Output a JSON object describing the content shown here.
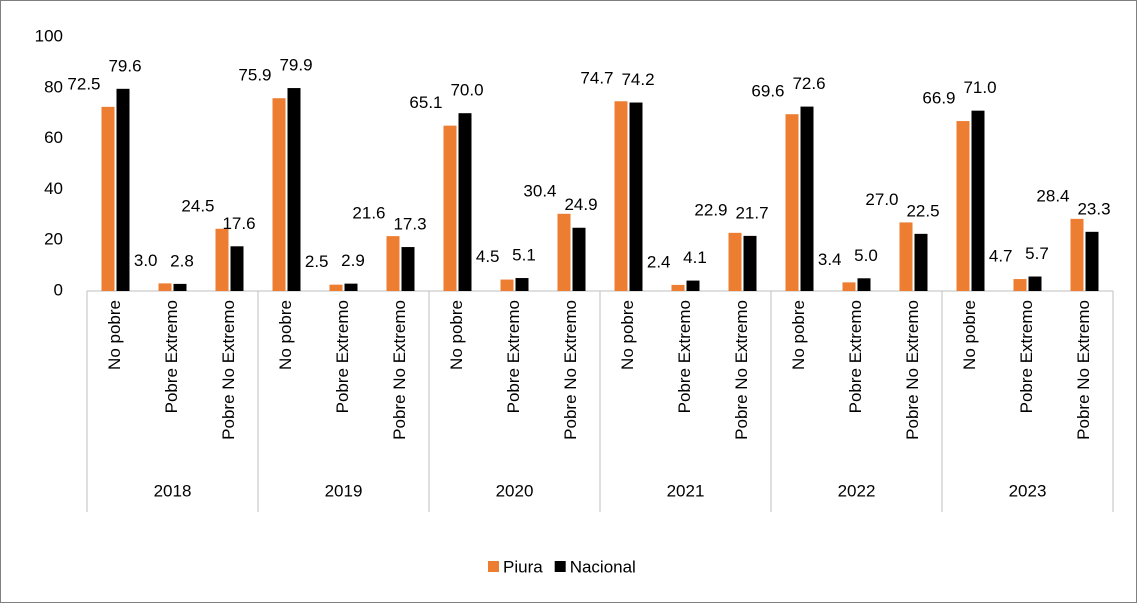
{
  "chart_data": {
    "type": "bar",
    "groups": [
      "2018",
      "2019",
      "2020",
      "2021",
      "2022",
      "2023"
    ],
    "categories": [
      "No pobre",
      "Pobre Extremo",
      "Pobre No Extremo",
      "No pobre",
      "Pobre Extremo",
      "Pobre No Extremo",
      "No pobre",
      "Pobre Extremo",
      "Pobre No Extremo",
      "No pobre",
      "Pobre Extremo",
      "Pobre No Extremo",
      "No pobre",
      "Pobre Extremo",
      "Pobre No Extremo",
      "No pobre",
      "Pobre Extremo",
      "Pobre No Extremo"
    ],
    "series": [
      {
        "name": "Piura",
        "color": "#ED7D31",
        "values": [
          72.5,
          3.0,
          24.5,
          75.9,
          2.5,
          21.6,
          65.1,
          4.5,
          30.4,
          74.7,
          2.4,
          22.9,
          69.6,
          3.4,
          27.0,
          66.9,
          4.7,
          28.4
        ],
        "value_labels": [
          "72.5",
          "3.0",
          "24.5",
          "75.9",
          "2.5",
          "21.6",
          "65.1",
          "4.5",
          "30.4",
          "74.7",
          "2.4",
          "22.9",
          "69.6",
          "3.4",
          "27.0",
          "66.9",
          "4.7",
          "28.4"
        ]
      },
      {
        "name": "Nacional",
        "color": "#000000",
        "values": [
          79.6,
          2.8,
          17.6,
          79.9,
          2.9,
          17.3,
          70.0,
          5.1,
          24.9,
          74.2,
          4.1,
          21.7,
          72.6,
          5.0,
          22.5,
          71.0,
          5.7,
          23.3
        ],
        "value_labels": [
          "79.6",
          "2.8",
          "17.6",
          "79.9",
          "2.9",
          "17.3",
          "70.0",
          "5.1",
          "24.9",
          "74.2",
          "4.1",
          "21.7",
          "72.6",
          "5.0",
          "22.5",
          "71.0",
          "5.7",
          "23.3"
        ]
      }
    ],
    "ylim": [
      0,
      100
    ],
    "yticks": [
      0,
      20,
      40,
      60,
      80,
      100
    ],
    "grid": false,
    "legend": "bottom"
  }
}
